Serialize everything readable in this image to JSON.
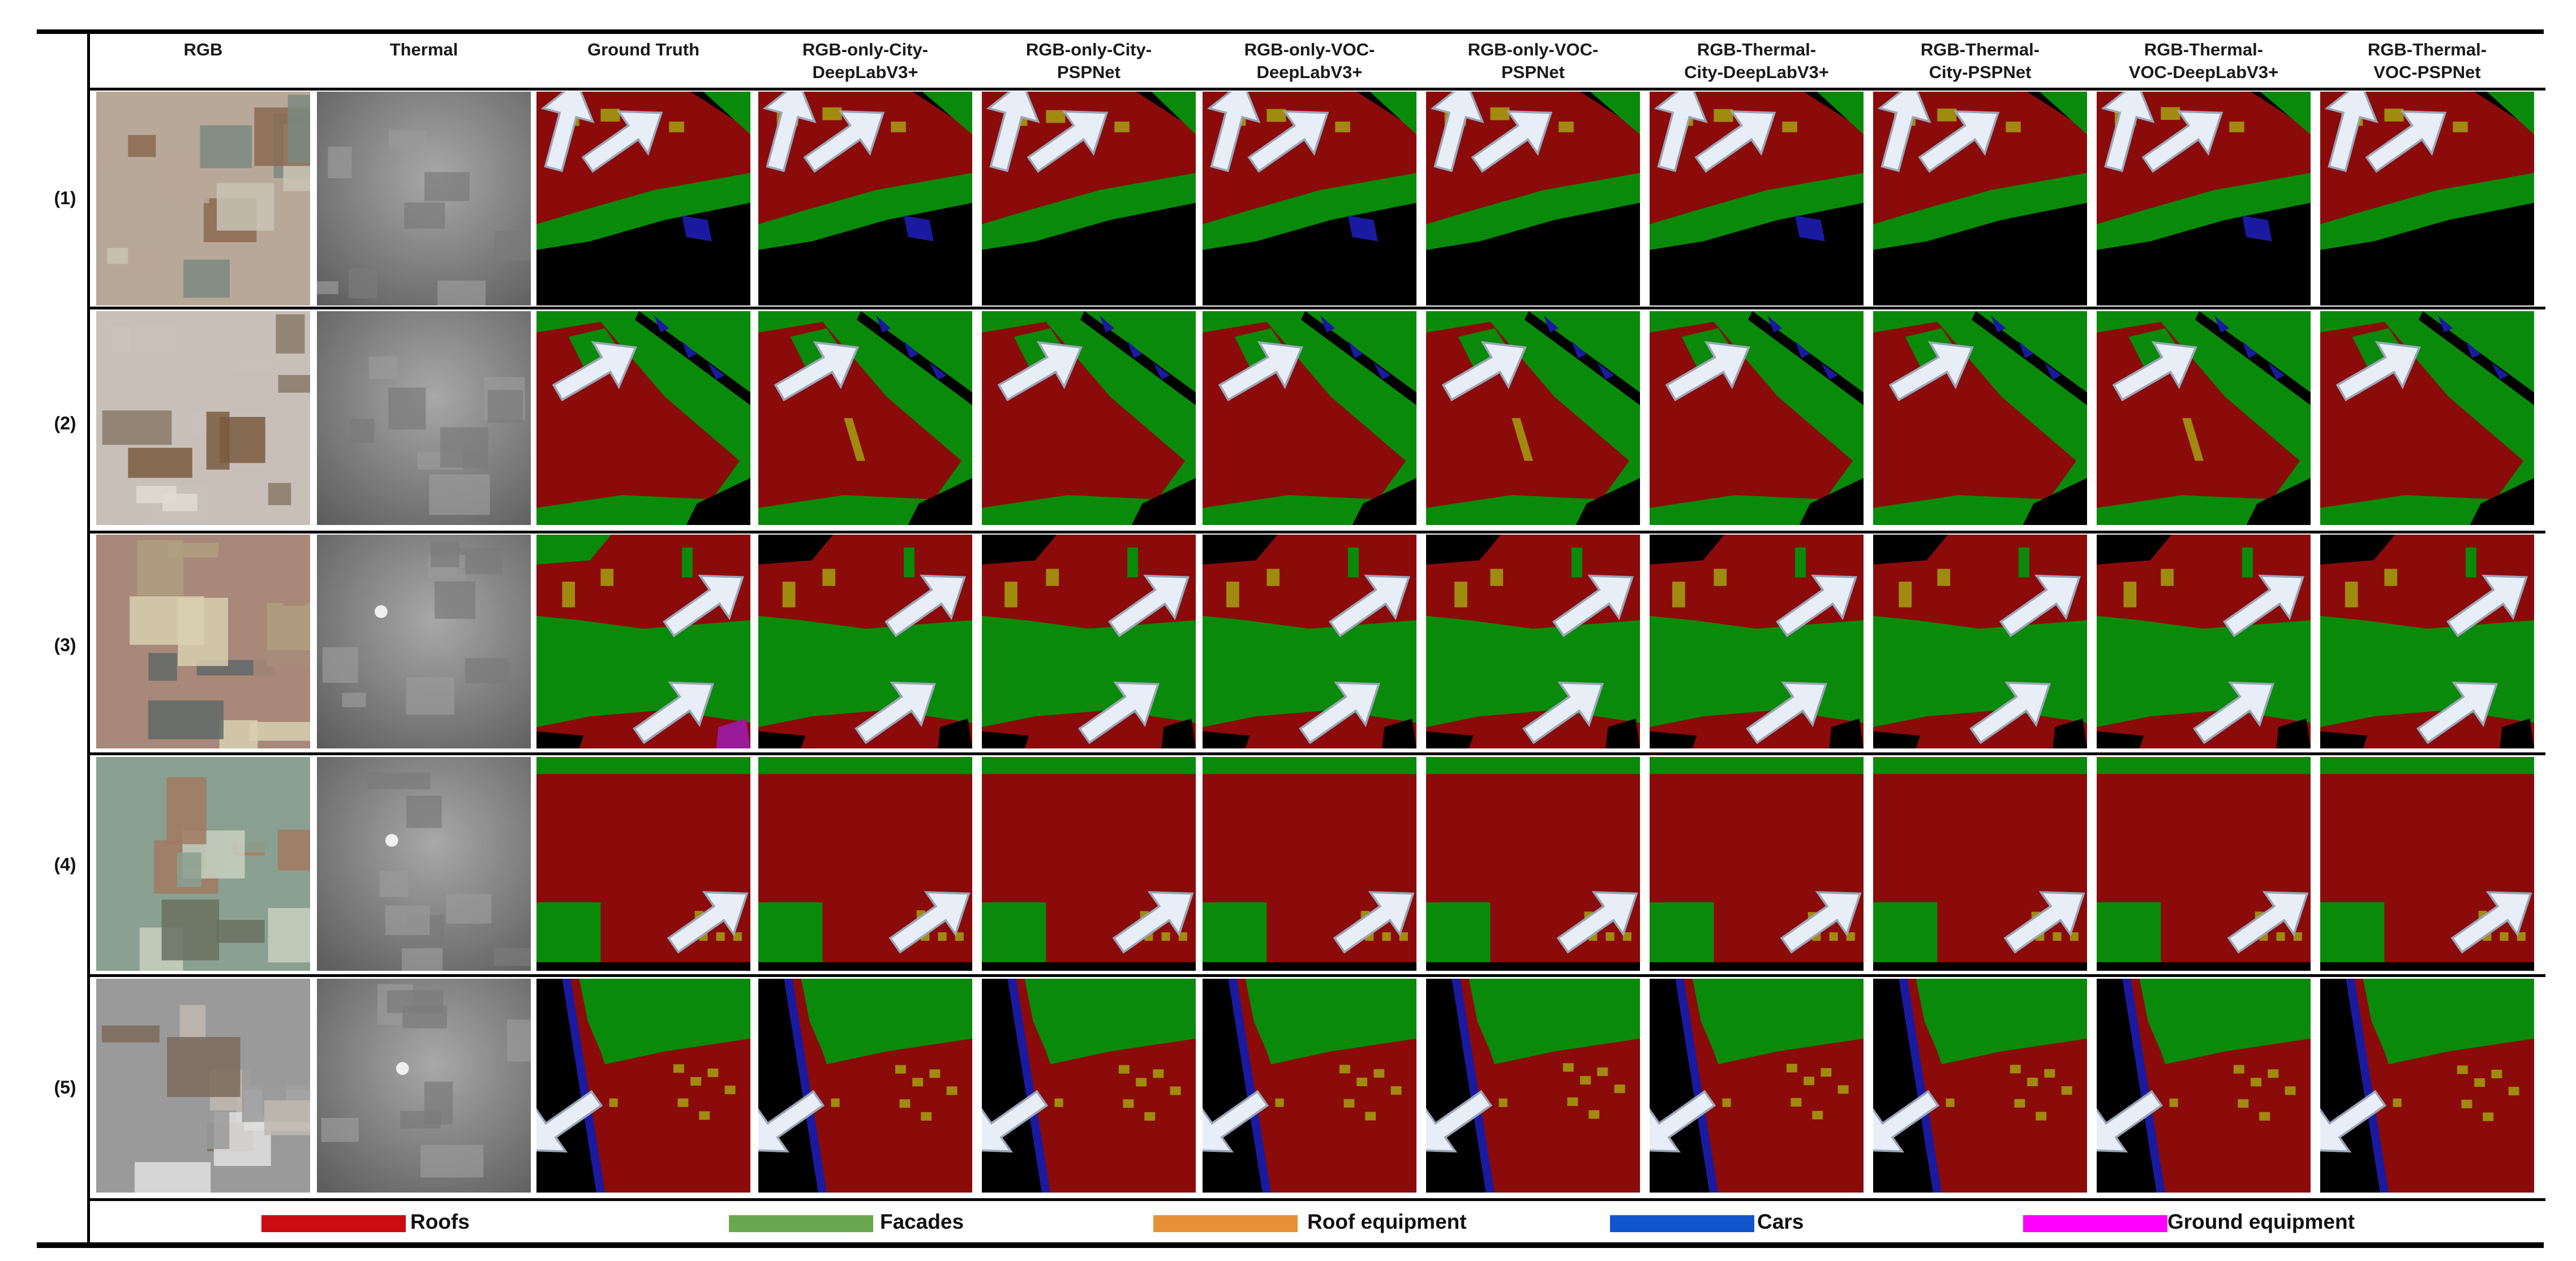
{
  "columns": [
    {
      "label": "RGB",
      "lines": [
        "RGB"
      ]
    },
    {
      "label": "Thermal",
      "lines": [
        "Thermal"
      ]
    },
    {
      "label": "Ground Truth",
      "lines": [
        "Ground Truth"
      ]
    },
    {
      "label": "RGB-only-City-DeepLabV3+",
      "lines": [
        "RGB-only-City-",
        "DeepLabV3+"
      ]
    },
    {
      "label": "RGB-only-City-PSPNet",
      "lines": [
        "RGB-only-City-",
        "PSPNet"
      ]
    },
    {
      "label": "RGB-only-VOC-DeepLabV3+",
      "lines": [
        "RGB-only-VOC-",
        "DeepLabV3+"
      ]
    },
    {
      "label": "RGB-only-VOC-PSPNet",
      "lines": [
        "RGB-only-VOC-",
        "PSPNet"
      ]
    },
    {
      "label": "RGB-Thermal-City-DeepLabV3+",
      "lines": [
        "RGB-Thermal-",
        "City-DeepLabV3+"
      ]
    },
    {
      "label": "RGB-Thermal-City-PSPNet",
      "lines": [
        "RGB-Thermal-",
        "City-PSPNet"
      ]
    },
    {
      "label": "RGB-Thermal-VOC-DeepLabV3+",
      "lines": [
        "RGB-Thermal-",
        "VOC-DeepLabV3+"
      ]
    },
    {
      "label": "RGB-Thermal-VOC-PSPNet",
      "lines": [
        "RGB-Thermal-",
        "VOC-PSPNet"
      ]
    }
  ],
  "rows": [
    {
      "label": "(1)"
    },
    {
      "label": "(2)"
    },
    {
      "label": "(3)"
    },
    {
      "label": "(4)"
    },
    {
      "label": "(5)"
    }
  ],
  "legend": [
    {
      "label": "Roofs",
      "color": "#cc0b12"
    },
    {
      "label": "Facades",
      "color": "#6aa84f"
    },
    {
      "label": "Roof equipment",
      "color": "#e69138"
    },
    {
      "label": "Cars",
      "color": "#1155cc"
    },
    {
      "label": "Ground equipment",
      "color": "#ff00ff"
    }
  ],
  "segmentation_palette": {
    "roof": "#8b0a0a",
    "facade": "#0a8a0a",
    "roof_equipment": "#a08a10",
    "car": "#1a1aa0",
    "ground_equipment": "#9a1a9a",
    "background": "#000000",
    "arrow": "#e8eef8"
  }
}
